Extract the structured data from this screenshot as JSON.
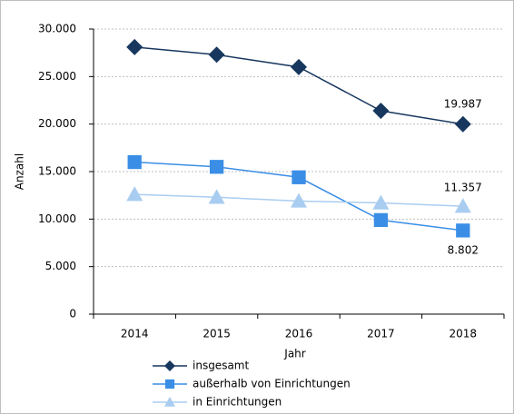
{
  "chart_data": {
    "type": "line",
    "x_label": "Jahr",
    "y_label": "Anzahl",
    "categories": [
      "2014",
      "2015",
      "2016",
      "2017",
      "2018"
    ],
    "series": [
      {
        "name": "insgesamt",
        "color": "#17375e",
        "marker": "diamond",
        "values": [
          28100,
          27300,
          26000,
          21400,
          19987
        ],
        "value_labels": [
          null,
          null,
          null,
          null,
          "19.987"
        ]
      },
      {
        "name": "außerhalb von Einrichtungen",
        "color": "#3a8ee6",
        "marker": "square",
        "values": [
          16000,
          15500,
          14400,
          9900,
          8802
        ],
        "value_labels": [
          null,
          null,
          null,
          null,
          "8.802"
        ]
      },
      {
        "name": "in Einrichtungen",
        "color": "#a9cdf0",
        "marker": "triangle",
        "values": [
          12600,
          12300,
          11900,
          11700,
          11357
        ],
        "value_labels": [
          null,
          null,
          null,
          null,
          "11.357"
        ]
      }
    ],
    "ylim": [
      0,
      30000
    ],
    "yticks": [
      0,
      {
        "value": 5000,
        "label": "5.000"
      },
      {
        "value": 10000,
        "label": "10.000"
      },
      {
        "value": 15000,
        "label": "15.000"
      },
      {
        "value": 20000,
        "label": "20.000"
      },
      {
        "value": 25000,
        "label": "25.000"
      },
      {
        "value": 30000,
        "label": "30.000"
      }
    ],
    "grid": true
  }
}
